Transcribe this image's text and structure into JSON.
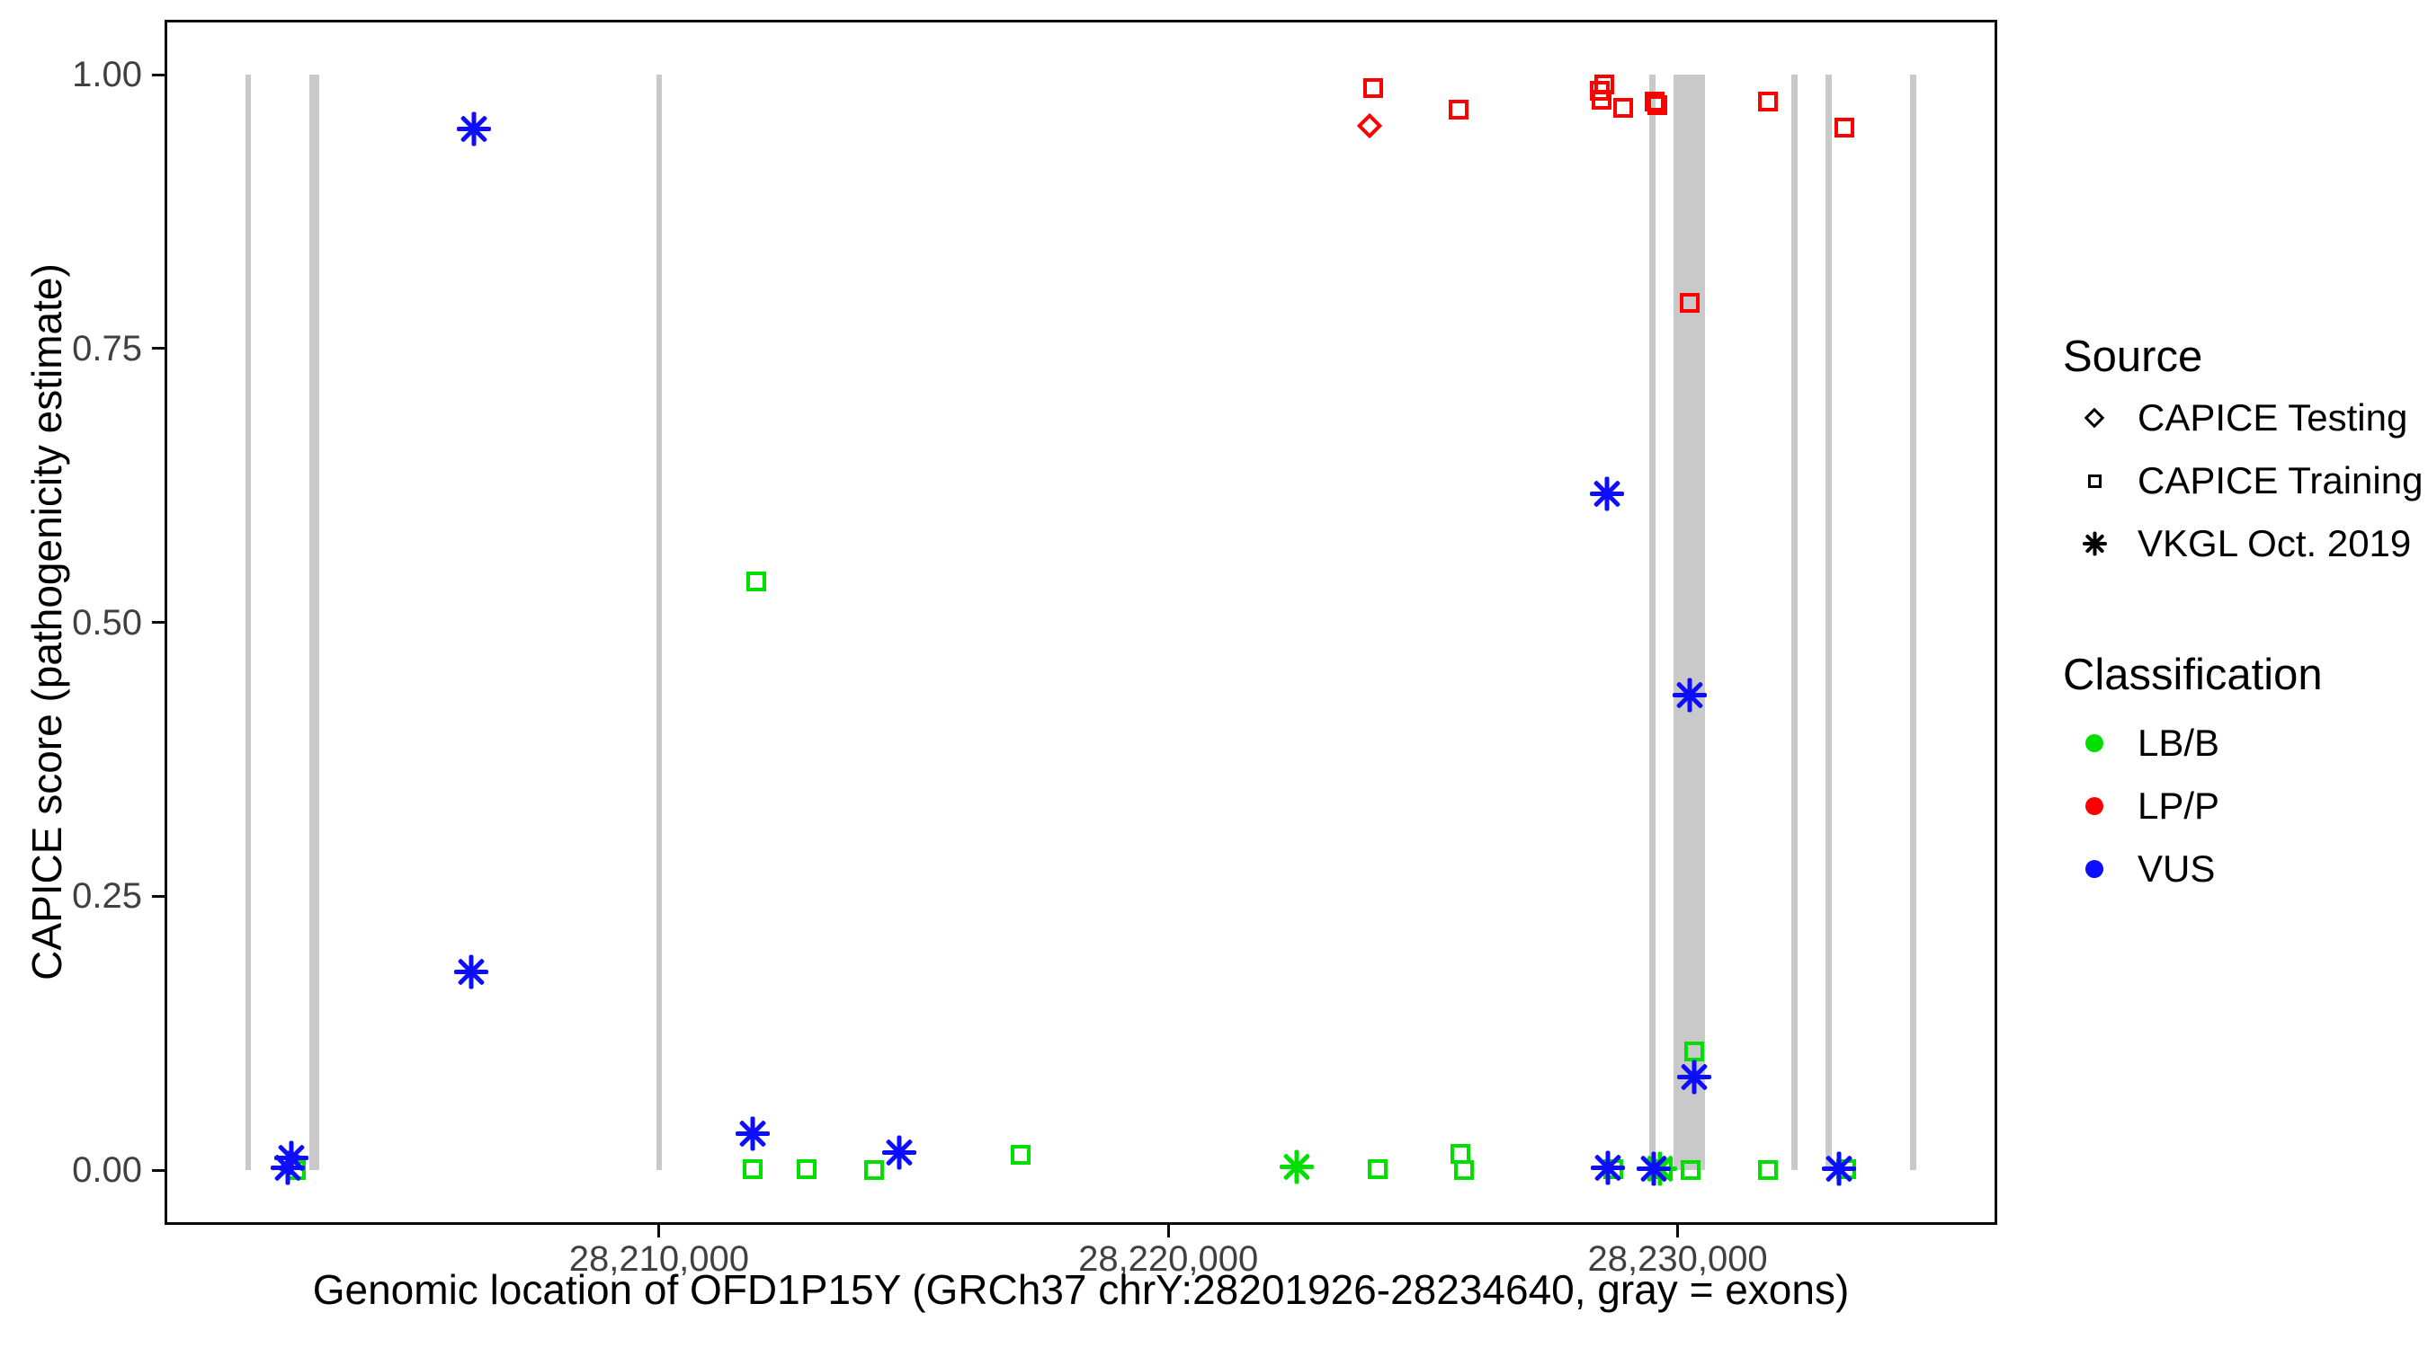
{
  "axes": {
    "x": {
      "title": "Genomic location of OFD1P15Y (GRCh37 chrY:28201926-28234640, gray = exons)",
      "ticks": [
        {
          "label": "28,210,000",
          "value": 28210000
        },
        {
          "label": "28,220,000",
          "value": 28220000
        },
        {
          "label": "28,230,000",
          "value": 28230000
        }
      ]
    },
    "y": {
      "title": "CAPICE score (pathogenicity estimate)",
      "ticks": [
        {
          "label": "1.00",
          "value": 1.0
        },
        {
          "label": "0.75",
          "value": 0.75
        },
        {
          "label": "0.50",
          "value": 0.5
        },
        {
          "label": "0.25",
          "value": 0.25
        },
        {
          "label": "0.00",
          "value": 0.0
        }
      ]
    }
  },
  "legend": {
    "source": {
      "title": "Source",
      "items": [
        {
          "label": "CAPICE Testing",
          "shape": "diamond"
        },
        {
          "label": "CAPICE Training",
          "shape": "square"
        },
        {
          "label": "VKGL Oct. 2019",
          "shape": "asterisk"
        }
      ]
    },
    "classification": {
      "title": "Classification",
      "items": [
        {
          "label": "LB/B",
          "color": "#00DF00"
        },
        {
          "label": "LP/P",
          "color": "#FF0000"
        },
        {
          "label": "VUS",
          "color": "#0D0DFF"
        }
      ]
    }
  },
  "chart_data": {
    "type": "scatter",
    "title": "",
    "xlabel": "Genomic location of OFD1P15Y (GRCh37 chrY:28201926-28234640, gray = exons)",
    "ylabel": "CAPICE score (pathogenicity estimate)",
    "gene": {
      "name": "OFD1P15Y",
      "assembly": "GRCh37",
      "chrom": "chrY",
      "start": 28201926,
      "end": 28234640
    },
    "xlim": [
      28200290,
      28236276
    ],
    "ylim": [
      -0.05,
      1.05
    ],
    "grid": false,
    "legend_position": "right",
    "exon_color": "#C9C9C9",
    "exon_y_span": [
      0.0,
      1.0
    ],
    "exons": [
      [
        28201880,
        28201990
      ],
      [
        28203140,
        28203320
      ],
      [
        28209940,
        28210050
      ],
      [
        28229450,
        28229560
      ],
      [
        28229910,
        28230530
      ],
      [
        28232240,
        28232350
      ],
      [
        28232910,
        28233020
      ],
      [
        28234570,
        28234680
      ]
    ],
    "points": [
      {
        "x": 28202867,
        "y": 0.0,
        "source": "CAPICE Training",
        "class": "LB/B"
      },
      {
        "x": 28211907,
        "y": 0.537,
        "source": "CAPICE Training",
        "class": "LB/B"
      },
      {
        "x": 28211836,
        "y": 0.001,
        "source": "CAPICE Training",
        "class": "LB/B"
      },
      {
        "x": 28212895,
        "y": 0.001,
        "source": "CAPICE Training",
        "class": "LB/B"
      },
      {
        "x": 28214219,
        "y": 0.0,
        "source": "CAPICE Training",
        "class": "LB/B"
      },
      {
        "x": 28217097,
        "y": 0.014,
        "source": "CAPICE Training",
        "class": "LB/B"
      },
      {
        "x": 28224106,
        "y": 0.001,
        "source": "CAPICE Training",
        "class": "LB/B"
      },
      {
        "x": 28225730,
        "y": 0.015,
        "source": "CAPICE Training",
        "class": "LB/B"
      },
      {
        "x": 28225800,
        "y": 0.0,
        "source": "CAPICE Training",
        "class": "LB/B"
      },
      {
        "x": 28228732,
        "y": 0.001,
        "source": "CAPICE Training",
        "class": "LB/B"
      },
      {
        "x": 28229702,
        "y": 0.001,
        "source": "CAPICE Training",
        "class": "LB/B"
      },
      {
        "x": 28230250,
        "y": 0.0,
        "source": "CAPICE Training",
        "class": "LB/B"
      },
      {
        "x": 28230320,
        "y": 0.108,
        "source": "CAPICE Training",
        "class": "LB/B"
      },
      {
        "x": 28231768,
        "y": 0.0,
        "source": "CAPICE Training",
        "class": "LB/B"
      },
      {
        "x": 28233304,
        "y": 0.001,
        "source": "CAPICE Training",
        "class": "LB/B"
      },
      {
        "x": 28224017,
        "y": 0.988,
        "source": "CAPICE Training",
        "class": "LP/P"
      },
      {
        "x": 28225694,
        "y": 0.968,
        "source": "CAPICE Training",
        "class": "LP/P"
      },
      {
        "x": 28228555,
        "y": 0.991,
        "source": "CAPICE Training",
        "class": "LP/P"
      },
      {
        "x": 28228466,
        "y": 0.985,
        "source": "CAPICE Training",
        "class": "LP/P"
      },
      {
        "x": 28228502,
        "y": 0.977,
        "source": "CAPICE Training",
        "class": "LP/P"
      },
      {
        "x": 28228925,
        "y": 0.97,
        "source": "CAPICE Training",
        "class": "LP/P"
      },
      {
        "x": 28229543,
        "y": 0.975,
        "source": "CAPICE Training",
        "class": "LP/P"
      },
      {
        "x": 28229596,
        "y": 0.972,
        "source": "CAPICE Training",
        "class": "LP/P"
      },
      {
        "x": 28230232,
        "y": 0.792,
        "source": "CAPICE Training",
        "class": "LP/P"
      },
      {
        "x": 28231768,
        "y": 0.975,
        "source": "CAPICE Training",
        "class": "LP/P"
      },
      {
        "x": 28233268,
        "y": 0.952,
        "source": "CAPICE Training",
        "class": "LP/P"
      },
      {
        "x": 28223947,
        "y": 0.953,
        "source": "CAPICE Testing",
        "class": "LP/P"
      },
      {
        "x": 28222517,
        "y": 0.003,
        "source": "VKGL Oct. 2019",
        "class": "LB/B"
      },
      {
        "x": 28229649,
        "y": 0.001,
        "source": "VKGL Oct. 2019",
        "class": "LB/B"
      },
      {
        "x": 28206363,
        "y": 0.95,
        "source": "VKGL Oct. 2019",
        "class": "VUS"
      },
      {
        "x": 28206310,
        "y": 0.181,
        "source": "VKGL Oct. 2019",
        "class": "VUS"
      },
      {
        "x": 28202779,
        "y": 0.011,
        "source": "VKGL Oct. 2019",
        "class": "VUS"
      },
      {
        "x": 28202708,
        "y": 0.002,
        "source": "VKGL Oct. 2019",
        "class": "VUS"
      },
      {
        "x": 28211836,
        "y": 0.033,
        "source": "VKGL Oct. 2019",
        "class": "VUS"
      },
      {
        "x": 28214713,
        "y": 0.016,
        "source": "VKGL Oct. 2019",
        "class": "VUS"
      },
      {
        "x": 28228608,
        "y": 0.617,
        "source": "VKGL Oct. 2019",
        "class": "VUS"
      },
      {
        "x": 28230232,
        "y": 0.434,
        "source": "VKGL Oct. 2019",
        "class": "VUS"
      },
      {
        "x": 28230320,
        "y": 0.085,
        "source": "VKGL Oct. 2019",
        "class": "VUS"
      },
      {
        "x": 28228626,
        "y": 0.002,
        "source": "VKGL Oct. 2019",
        "class": "VUS"
      },
      {
        "x": 28229525,
        "y": 0.001,
        "source": "VKGL Oct. 2019",
        "class": "VUS"
      },
      {
        "x": 28233163,
        "y": 0.001,
        "source": "VKGL Oct. 2019",
        "class": "VUS"
      }
    ]
  }
}
